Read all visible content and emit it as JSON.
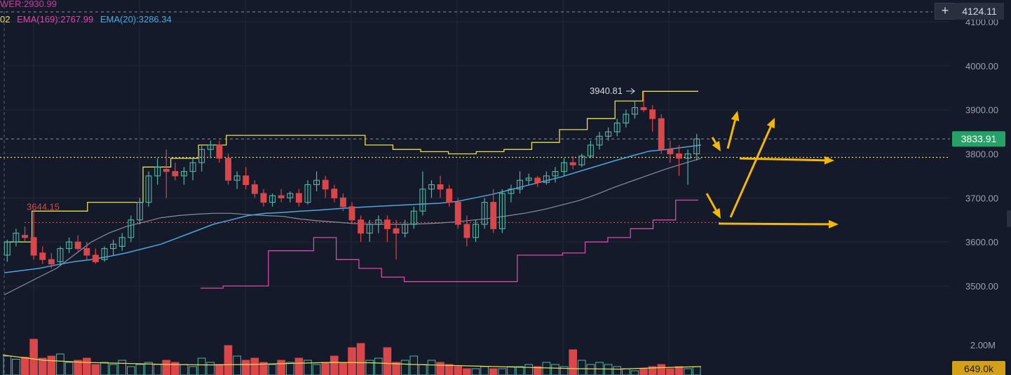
{
  "legend": {
    "line1": "WER:2930.99",
    "line2_prefix": "02",
    "ema169": "EMA(169):2767.99",
    "ema20": "EMA(20):3286.34"
  },
  "crosshair": {
    "plus": "+",
    "price": "4124.11"
  },
  "colors": {
    "background": "#151a2b",
    "up": "#56b4a3",
    "down": "#d9474b",
    "ema20": "#4fa6d9",
    "ema169": "#8b8d9c",
    "upper_band": "#e8e04a",
    "lower_band": "#d84aa6",
    "current_price": "#26a269",
    "volume_label": "#d4a017",
    "arrow": "#f5b800",
    "dotted_level": "#e8e04a",
    "support_level": "#d9474b"
  },
  "chart_data": {
    "type": "candlestick",
    "y_axis": {
      "min": 3440,
      "max": 4140,
      "ticks": [
        "4100.00",
        "4000.00",
        "3900.00",
        "3800.00",
        "3700.00",
        "3600.00",
        "3500.00"
      ]
    },
    "candles": [
      [
        3570,
        3605,
        3555,
        3600
      ],
      [
        3600,
        3630,
        3590,
        3620
      ],
      [
        3615,
        3635,
        3600,
        3610
      ],
      [
        3610,
        3670,
        3560,
        3570
      ],
      [
        3575,
        3590,
        3550,
        3560
      ],
      [
        3560,
        3575,
        3540,
        3550
      ],
      [
        3555,
        3590,
        3545,
        3585
      ],
      [
        3585,
        3610,
        3575,
        3600
      ],
      [
        3600,
        3615,
        3580,
        3585
      ],
      [
        3585,
        3600,
        3560,
        3570
      ],
      [
        3570,
        3585,
        3550,
        3555
      ],
      [
        3560,
        3590,
        3555,
        3585
      ],
      [
        3585,
        3605,
        3570,
        3595
      ],
      [
        3590,
        3620,
        3580,
        3610
      ],
      [
        3610,
        3660,
        3600,
        3650
      ],
      [
        3650,
        3700,
        3640,
        3690
      ],
      [
        3690,
        3760,
        3680,
        3750
      ],
      [
        3750,
        3790,
        3730,
        3770
      ],
      [
        3765,
        3810,
        3700,
        3760
      ],
      [
        3760,
        3780,
        3740,
        3750
      ],
      [
        3750,
        3770,
        3730,
        3760
      ],
      [
        3760,
        3790,
        3740,
        3780
      ],
      [
        3780,
        3820,
        3760,
        3810
      ],
      [
        3810,
        3830,
        3790,
        3820
      ],
      [
        3820,
        3830,
        3780,
        3790
      ],
      [
        3790,
        3800,
        3730,
        3740
      ],
      [
        3740,
        3760,
        3720,
        3750
      ],
      [
        3750,
        3770,
        3720,
        3730
      ],
      [
        3730,
        3740,
        3700,
        3710
      ],
      [
        3710,
        3720,
        3680,
        3690
      ],
      [
        3690,
        3710,
        3680,
        3705
      ],
      [
        3705,
        3720,
        3690,
        3700
      ],
      [
        3700,
        3715,
        3690,
        3710
      ],
      [
        3710,
        3720,
        3680,
        3690
      ],
      [
        3690,
        3740,
        3685,
        3730
      ],
      [
        3730,
        3760,
        3715,
        3740
      ],
      [
        3740,
        3750,
        3700,
        3720
      ],
      [
        3720,
        3730,
        3690,
        3700
      ],
      [
        3700,
        3710,
        3670,
        3680
      ],
      [
        3680,
        3690,
        3640,
        3650
      ],
      [
        3650,
        3660,
        3600,
        3620
      ],
      [
        3620,
        3650,
        3600,
        3640
      ],
      [
        3640,
        3660,
        3620,
        3650
      ],
      [
        3650,
        3660,
        3600,
        3630
      ],
      [
        3630,
        3650,
        3560,
        3620
      ],
      [
        3620,
        3650,
        3610,
        3640
      ],
      [
        3640,
        3680,
        3630,
        3670
      ],
      [
        3670,
        3760,
        3660,
        3720
      ],
      [
        3720,
        3740,
        3700,
        3730
      ],
      [
        3730,
        3750,
        3700,
        3720
      ],
      [
        3720,
        3730,
        3680,
        3690
      ],
      [
        3690,
        3700,
        3630,
        3640
      ],
      [
        3640,
        3660,
        3590,
        3610
      ],
      [
        3610,
        3650,
        3600,
        3640
      ],
      [
        3640,
        3700,
        3630,
        3690
      ],
      [
        3690,
        3720,
        3620,
        3630
      ],
      [
        3630,
        3720,
        3620,
        3710
      ],
      [
        3710,
        3730,
        3690,
        3720
      ],
      [
        3720,
        3760,
        3710,
        3740
      ],
      [
        3740,
        3755,
        3730,
        3745
      ],
      [
        3745,
        3750,
        3725,
        3735
      ],
      [
        3735,
        3760,
        3730,
        3750
      ],
      [
        3750,
        3770,
        3735,
        3760
      ],
      [
        3760,
        3790,
        3750,
        3780
      ],
      [
        3780,
        3795,
        3765,
        3775
      ],
      [
        3775,
        3800,
        3770,
        3795
      ],
      [
        3795,
        3830,
        3790,
        3820
      ],
      [
        3820,
        3850,
        3810,
        3840
      ],
      [
        3840,
        3860,
        3830,
        3850
      ],
      [
        3850,
        3880,
        3840,
        3870
      ],
      [
        3870,
        3900,
        3860,
        3890
      ],
      [
        3890,
        3920,
        3880,
        3905
      ],
      [
        3905,
        3941,
        3895,
        3900
      ],
      [
        3900,
        3910,
        3850,
        3880
      ],
      [
        3880,
        3890,
        3800,
        3810
      ],
      [
        3810,
        3830,
        3780,
        3800
      ],
      [
        3800,
        3820,
        3750,
        3790
      ],
      [
        3790,
        3810,
        3730,
        3800
      ],
      [
        3800,
        3845,
        3785,
        3834
      ]
    ],
    "ema20": [
      3530,
      3535,
      3540,
      3548,
      3555,
      3560,
      3567,
      3575,
      3585,
      3595,
      3610,
      3625,
      3640,
      3650,
      3660,
      3665,
      3667,
      3670,
      3672,
      3675,
      3678,
      3680,
      3682,
      3684,
      3686,
      3688,
      3692,
      3700,
      3708,
      3718,
      3728,
      3738,
      3748,
      3760,
      3772,
      3784,
      3795,
      3806,
      3810,
      3815,
      3820
    ],
    "ema169": [
      3480,
      3500,
      3520,
      3540,
      3570,
      3600,
      3620,
      3635,
      3645,
      3655,
      3660,
      3663,
      3665,
      3665,
      3662,
      3660,
      3658,
      3652,
      3648,
      3645,
      3642,
      3640,
      3640,
      3640,
      3641,
      3643,
      3646,
      3650,
      3654,
      3660,
      3666,
      3674,
      3684,
      3694,
      3708,
      3724,
      3738,
      3752,
      3766,
      3778,
      3790
    ],
    "upper_band": [
      3600,
      3670,
      3670,
      3690,
      3690,
      3770,
      3790,
      3820,
      3842,
      3842,
      3842,
      3842,
      3842,
      3820,
      3810,
      3805,
      3800,
      3805,
      3810,
      3826,
      3855,
      3880,
      3920,
      3942,
      3942
    ],
    "lower_band": [
      3495,
      3500,
      3500,
      3580,
      3580,
      3610,
      3560,
      3540,
      3520,
      3510,
      3510,
      3510,
      3510,
      3510,
      3570,
      3570,
      3575,
      3600,
      3610,
      3630,
      3650,
      3695
    ],
    "upper_band_label": "3940.81",
    "support_label": "3644.15",
    "support_level": 3644.15,
    "dotted_level": 3792,
    "current_price": "3833.91",
    "current_value": 3833.91,
    "volume": {
      "label": "2.00M",
      "current": "649.0k",
      "values": [
        0.9,
        0.75,
        0.85,
        1.7,
        0.8,
        0.9,
        1.0,
        0.6,
        0.7,
        0.8,
        0.5,
        0.6,
        0.5,
        0.7,
        0.4,
        0.5,
        0.6,
        0.5,
        0.7,
        0.6,
        0.5,
        0.4,
        0.8,
        0.6,
        0.5,
        1.4,
        0.9,
        0.7,
        0.8,
        0.6,
        0.5,
        0.7,
        0.6,
        0.8,
        0.7,
        0.5,
        0.6,
        0.9,
        0.6,
        1.3,
        1.5,
        0.7,
        0.8,
        1.3,
        0.6,
        0.7,
        0.9,
        0.5,
        0.7,
        0.6,
        0.5,
        0.4,
        0.3,
        0.3,
        0.4,
        0.3,
        0.3,
        0.4,
        0.4,
        0.5,
        0.4,
        0.6,
        0.5,
        0.4,
        1.2,
        0.7,
        0.5,
        0.6,
        0.5,
        0.4,
        0.3,
        0.2,
        0.3,
        0.4,
        0.5,
        0.3,
        0.4,
        0.3,
        0.4
      ]
    }
  }
}
